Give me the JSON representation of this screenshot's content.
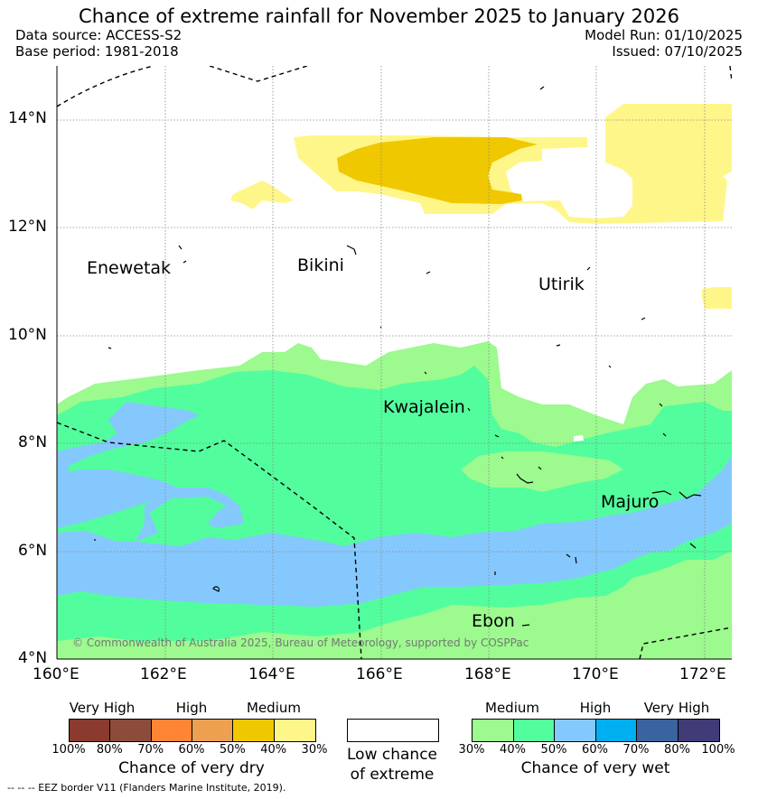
{
  "title": "Chance of extreme rainfall for November 2025 to January 2026",
  "data_source": "Data source: ACCESS-S2",
  "base_period": "Base period: 1981-2018",
  "model_run": "Model Run: 01/10/2025",
  "issued": "Issued: 07/10/2025",
  "copyright": "© Commonwealth of Australia 2025, Bureau of Meteorology, supported by COSPPac",
  "eez_note": "-- -- -- EEZ border V11 (Flanders Marine Institute, 2019).",
  "lat_labels": [
    "14°N",
    "12°N",
    "10°N",
    "8°N",
    "6°N",
    "4°N"
  ],
  "lon_labels": [
    "160°E",
    "162°E",
    "164°E",
    "166°E",
    "168°E",
    "170°E",
    "172°E"
  ],
  "places": [
    "Enewetak",
    "Bikini",
    "Utirik",
    "Kwajalein",
    "Majuro",
    "Ebon"
  ],
  "legend": {
    "dry": {
      "categories": [
        "Very High",
        "High",
        "Medium"
      ],
      "ticks": [
        "100%",
        "80%",
        "70%",
        "60%",
        "50%",
        "40%",
        "30%"
      ],
      "caption": "Chance of very dry",
      "colors": [
        "#8b3a2f",
        "#8b4c3c",
        "#ff8534",
        "#eca050",
        "#f0c800",
        "#fff68a"
      ]
    },
    "low": {
      "caption_line1": "Low chance",
      "caption_line2": "of extreme",
      "color": "#ffffff"
    },
    "wet": {
      "categories": [
        "Medium",
        "High",
        "Very High"
      ],
      "ticks": [
        "30%",
        "40%",
        "50%",
        "60%",
        "70%",
        "80%",
        "100%"
      ],
      "caption": "Chance of very wet",
      "colors": [
        "#9cfa8e",
        "#52fd9d",
        "#85c8fd",
        "#00aff0",
        "#3a64a0",
        "#403c78"
      ]
    }
  }
}
